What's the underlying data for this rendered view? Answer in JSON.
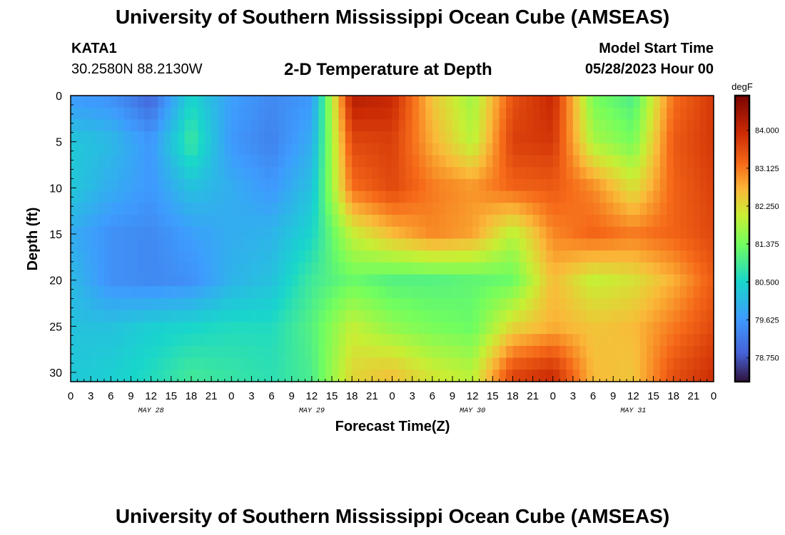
{
  "header": {
    "title": "University of Southern Mississippi Ocean Cube (AMSEAS)",
    "station": "KATA1",
    "coordinates": "30.2580N  88.2130W",
    "subtitle": "2-D Temperature at Depth",
    "model_start_label": "Model Start Time",
    "model_start_value": "05/28/2023 Hour 00"
  },
  "footer": {
    "title": "University of Southern Mississippi Ocean Cube (AMSEAS)"
  },
  "chart_data": {
    "type": "heatmap",
    "title": "2-D Temperature at Depth",
    "xlabel": "Forecast Time(Z)",
    "ylabel": "Depth (ft)",
    "x_hours_range": [
      0,
      96
    ],
    "x_tick_labels": [
      "0",
      "3",
      "6",
      "9",
      "12",
      "15",
      "18",
      "21",
      "0",
      "3",
      "6",
      "9",
      "12",
      "15",
      "18",
      "21",
      "0",
      "3",
      "6",
      "9",
      "12",
      "15",
      "18",
      "21",
      "0",
      "3",
      "6",
      "9",
      "12",
      "15",
      "18",
      "21",
      "0"
    ],
    "x_day_labels": [
      "MAY 28",
      "MAY 29",
      "MAY 30",
      "MAY 31"
    ],
    "ylim": [
      0,
      31
    ],
    "y_ticks": [
      0,
      5,
      10,
      15,
      20,
      25,
      30
    ],
    "colorbar": {
      "unit": "degF",
      "range": [
        78.2,
        84.8
      ],
      "ticks": [
        "84.000",
        "83.125",
        "82.250",
        "81.375",
        "80.500",
        "79.625",
        "78.750"
      ]
    },
    "depths_ft": [
      0,
      5,
      10,
      15,
      20,
      25,
      30
    ],
    "times_hours": [
      0,
      6,
      12,
      18,
      24,
      30,
      36,
      42,
      48,
      54,
      60,
      66,
      72,
      78,
      84,
      90,
      96
    ],
    "temperature_degF": [
      [
        79.6,
        79.5,
        78.9,
        80.5,
        79.7,
        79.4,
        79.6,
        84.2,
        84.0,
        82.5,
        81.7,
        83.5,
        84.0,
        81.4,
        81.0,
        83.2,
        83.8
      ],
      [
        80.3,
        80.1,
        79.6,
        80.9,
        79.6,
        79.3,
        79.9,
        83.6,
        83.7,
        82.7,
        81.9,
        83.7,
        83.8,
        81.8,
        81.4,
        83.4,
        83.8
      ],
      [
        80.3,
        79.9,
        79.6,
        80.2,
        79.9,
        79.6,
        80.2,
        83.2,
        83.6,
        83.1,
        82.9,
        83.3,
        83.4,
        83.0,
        82.2,
        83.3,
        83.7
      ],
      [
        79.9,
        79.5,
        79.4,
        79.7,
        79.9,
        80.0,
        80.5,
        82.0,
        82.6,
        83.0,
        82.8,
        81.9,
        83.0,
        83.3,
        83.1,
        83.3,
        83.6
      ],
      [
        80.1,
        79.5,
        79.4,
        79.5,
        80.0,
        80.2,
        80.9,
        81.3,
        81.1,
        81.1,
        81.2,
        81.3,
        82.6,
        82.0,
        82.2,
        82.7,
        83.4
      ],
      [
        80.2,
        80.2,
        80.4,
        80.5,
        80.6,
        80.6,
        81.1,
        82.0,
        81.6,
        81.4,
        81.3,
        82.3,
        82.7,
        82.5,
        82.6,
        83.1,
        83.6
      ],
      [
        80.3,
        80.4,
        80.6,
        80.9,
        80.8,
        80.7,
        81.0,
        82.3,
        82.5,
        82.1,
        81.9,
        83.6,
        83.9,
        82.6,
        82.5,
        83.5,
        83.9
      ]
    ]
  }
}
